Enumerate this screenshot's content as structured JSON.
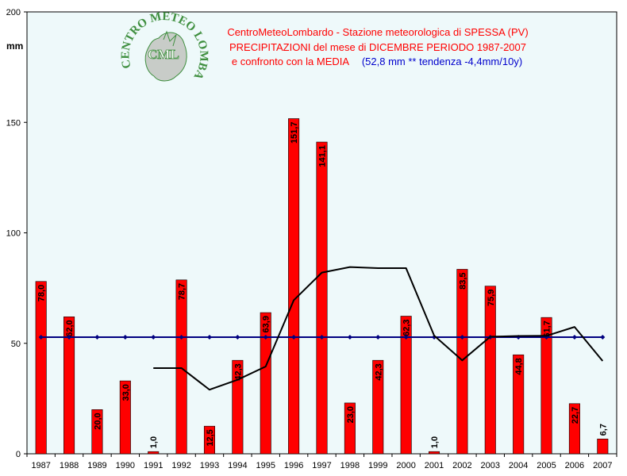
{
  "chart_data": {
    "type": "bar",
    "title_lines": [
      "CentroMeteoLombardo - Stazione meteorologica di SPESSA (PV)",
      "PRECIPITAZIONI del mese di DICEMBRE PERIODO 1987-2007",
      "e confronto con la MEDIA",
      "(52,8 mm ** tendenza -4,4mm/10y)"
    ],
    "ylabel": "mm",
    "ylim": [
      0,
      200
    ],
    "yticks": [
      0,
      50,
      100,
      150,
      200
    ],
    "categories": [
      "1987",
      "1988",
      "1989",
      "1990",
      "1991",
      "1992",
      "1993",
      "1994",
      "1995",
      "1996",
      "1997",
      "1998",
      "1999",
      "2000",
      "2001",
      "2002",
      "2003",
      "2004",
      "2005",
      "2006",
      "2007"
    ],
    "series": [
      {
        "kind": "bar",
        "values": [
          78.0,
          62.0,
          20.0,
          33.0,
          1.0,
          78.7,
          12.5,
          42.3,
          63.9,
          151.7,
          141.1,
          23.0,
          42.3,
          62.3,
          1.0,
          83.5,
          75.9,
          44.8,
          61.7,
          22.7,
          6.7
        ],
        "labels": [
          "78,0",
          "62,0",
          "20,0",
          "33,0",
          "1,0",
          "78,7",
          "12,5",
          "42,3",
          "63,9",
          "151,7",
          "141,1",
          "23,0",
          "42,3",
          "62,3",
          "1,0",
          "83,5",
          "75,9",
          "44,8",
          "61,7",
          "22,7",
          "6,7"
        ],
        "color": "#ff0000"
      },
      {
        "kind": "line-markers",
        "values": [
          52.8,
          52.8,
          52.8,
          52.8,
          52.8,
          52.8,
          52.8,
          52.8,
          52.8,
          52.8,
          52.8,
          52.8,
          52.8,
          52.8,
          52.8,
          52.8,
          52.8,
          52.8,
          52.8,
          52.8,
          52.8
        ],
        "color": "#000080"
      },
      {
        "kind": "line",
        "values": [
          null,
          null,
          null,
          null,
          38.8,
          38.8,
          29.0,
          33.5,
          39.5,
          69.5,
          82.0,
          84.5,
          84.0,
          84.0,
          53.5,
          42.3,
          53.0,
          53.3,
          53.4,
          57.4,
          42.0
        ],
        "color": "#000000"
      }
    ],
    "colors": {
      "background": "#ffffff",
      "plot_area": "#eef9fa",
      "title_red": "#ff0000",
      "title_blue": "#0000cc",
      "logo_green": "#3f8f3f"
    },
    "logo": {
      "text": "CENTRO METEO LOMBARDO",
      "abbr": "CML"
    }
  }
}
